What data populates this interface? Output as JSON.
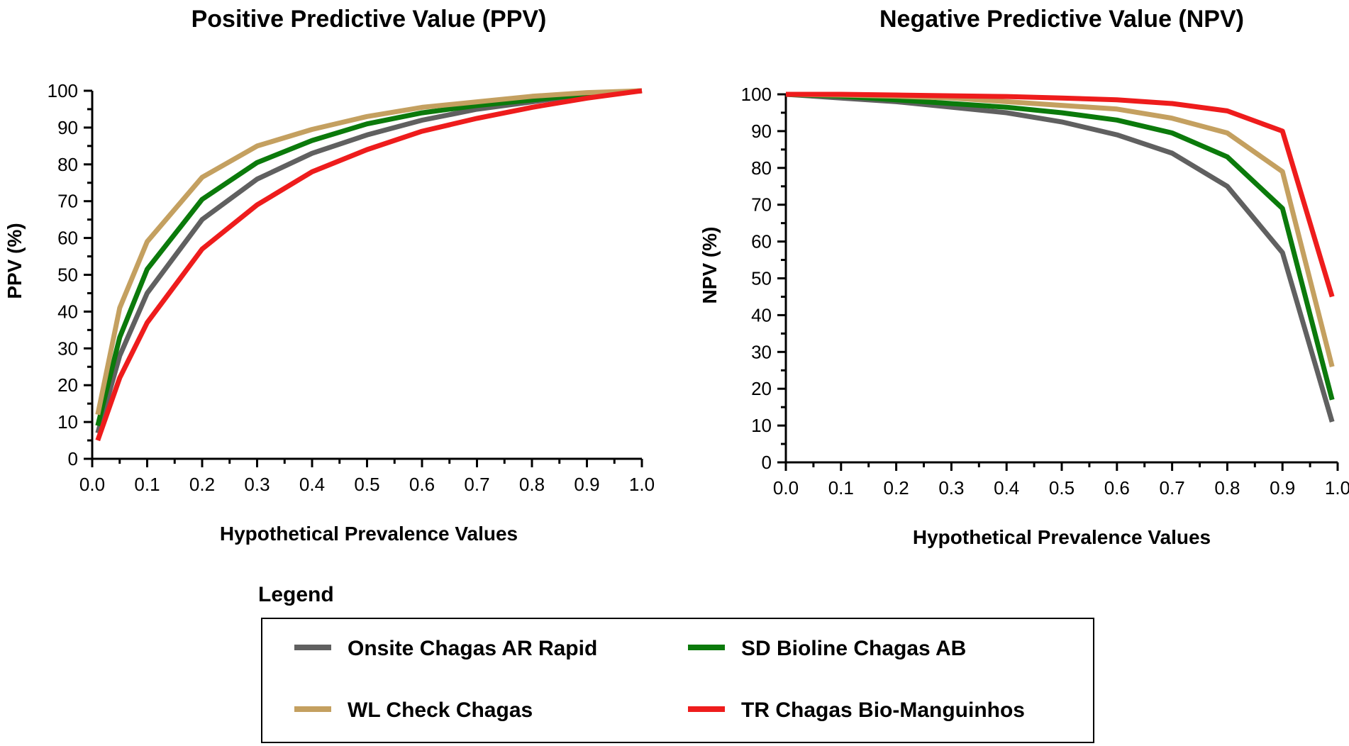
{
  "chart_data": [
    {
      "type": "line",
      "title": "Positive Predictive Value (PPV)",
      "xlabel": "Hypothetical Prevalence Values",
      "ylabel": "PPV (%)",
      "xlim": [
        0,
        1
      ],
      "ylim": [
        0,
        100
      ],
      "xticks": [
        "0.0",
        "0.1",
        "0.2",
        "0.3",
        "0.4",
        "0.5",
        "0.6",
        "0.7",
        "0.8",
        "0.9",
        "1.0"
      ],
      "yticks": [
        "0",
        "10",
        "20",
        "30",
        "40",
        "50",
        "60",
        "70",
        "80",
        "90",
        "100"
      ],
      "x": [
        0.01,
        0.05,
        0.1,
        0.2,
        0.3,
        0.4,
        0.5,
        0.6,
        0.7,
        0.8,
        0.9,
        1.0
      ],
      "series": [
        {
          "name": "Onsite Chagas AR Rapid",
          "color": "#606060",
          "values": [
            7,
            28,
            45,
            65,
            76,
            83,
            88,
            92,
            95,
            97,
            99,
            100
          ]
        },
        {
          "name": "SD Bioline Chagas AB",
          "color": "#0b7a0b",
          "values": [
            9,
            33,
            51.5,
            70.5,
            80.5,
            86.5,
            91,
            94,
            96,
            97.5,
            99,
            100
          ]
        },
        {
          "name": "WL Check Chagas",
          "color": "#c4a060",
          "values": [
            12,
            41,
            59,
            76.5,
            85,
            89.5,
            93,
            95.5,
            97,
            98.5,
            99.5,
            100
          ]
        },
        {
          "name": "TR Chagas Bio-Manguinhos",
          "color": "#ee1c1c",
          "values": [
            5,
            22,
            37,
            57,
            69,
            78,
            84,
            89,
            92.5,
            95.5,
            98,
            100
          ]
        }
      ]
    },
    {
      "type": "line",
      "title": "Negative Predictive Value (NPV)",
      "xlabel": "Hypothetical Prevalence Values",
      "ylabel": "NPV (%)",
      "xlim": [
        0,
        1
      ],
      "ylim": [
        0,
        100
      ],
      "xticks": [
        "0.0",
        "0.1",
        "0.2",
        "0.3",
        "0.4",
        "0.5",
        "0.6",
        "0.7",
        "0.8",
        "0.9",
        "1.0"
      ],
      "yticks": [
        "0",
        "10",
        "20",
        "30",
        "40",
        "50",
        "60",
        "70",
        "80",
        "90",
        "100"
      ],
      "x": [
        0.0,
        0.1,
        0.2,
        0.3,
        0.4,
        0.5,
        0.6,
        0.7,
        0.8,
        0.9,
        0.99
      ],
      "series": [
        {
          "name": "Onsite Chagas AR Rapid",
          "color": "#606060",
          "values": [
            100,
            99,
            98,
            96.5,
            95,
            92.5,
            89,
            84,
            75,
            57,
            11
          ]
        },
        {
          "name": "SD Bioline Chagas AB",
          "color": "#0b7a0b",
          "values": [
            100,
            99.5,
            98.5,
            97.5,
            96.5,
            95,
            93,
            89.5,
            83,
            69,
            17
          ]
        },
        {
          "name": "WL Check Chagas",
          "color": "#c4a060",
          "values": [
            100,
            99.8,
            99.5,
            99,
            98,
            97,
            96,
            93.5,
            89.5,
            79,
            26
          ]
        },
        {
          "name": "TR Chagas Bio-Manguinhos",
          "color": "#ee1c1c",
          "values": [
            100,
            100,
            99.8,
            99.6,
            99.4,
            99,
            98.5,
            97.5,
            95.5,
            90,
            45
          ]
        }
      ]
    }
  ],
  "legend": {
    "heading": "Legend",
    "items": [
      {
        "label": "Onsite Chagas AR Rapid",
        "color": "#606060"
      },
      {
        "label": "SD Bioline Chagas AB",
        "color": "#0b7a0b"
      },
      {
        "label": "WL Check Chagas",
        "color": "#c4a060"
      },
      {
        "label": "TR Chagas Bio-Manguinhos",
        "color": "#ee1c1c"
      }
    ]
  }
}
